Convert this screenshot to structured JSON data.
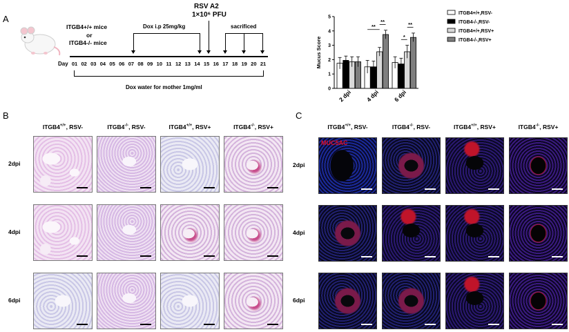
{
  "panels": {
    "a": "A",
    "b": "B",
    "c": "C"
  },
  "timeline": {
    "mouse_text_1": "ITGB4+/+ mice",
    "mouse_text_2": "or",
    "mouse_text_3": "ITGB4-/- mice",
    "dox_ip": "Dox i.p 25mg/kg",
    "rsv_title": "RSV A2",
    "rsv_dose": "1×10⁶ PFU",
    "sacrificed": "sacrificed",
    "day_label": "Day",
    "days": [
      "01",
      "02",
      "03",
      "04",
      "05",
      "06",
      "07",
      "08",
      "09",
      "10",
      "11",
      "12",
      "13",
      "14",
      "15",
      "16",
      "17",
      "18",
      "19",
      "20",
      "21"
    ],
    "dox_water": "Dox water for mother 1mg/ml"
  },
  "chart_data": {
    "type": "bar",
    "ylabel": "Mucus Score",
    "ylim": [
      0,
      5
    ],
    "yticks": [
      "0",
      "1",
      "2",
      "3",
      "4",
      "5"
    ],
    "categories": [
      "2 dpi",
      "4 dpi",
      "6 dpi"
    ],
    "series": [
      {
        "name": "ITGB4+/+,RSV-",
        "color": "#ffffff",
        "values": [
          1.75,
          1.5,
          1.8
        ],
        "errors": [
          0.4,
          0.45,
          0.4
        ]
      },
      {
        "name": "ITGB4-/-,RSV-",
        "color": "#000000",
        "values": [
          1.95,
          1.5,
          1.7
        ],
        "errors": [
          0.3,
          0.4,
          0.4
        ]
      },
      {
        "name": "ITGB4+/+,RSV+",
        "color": "#d9d9d9",
        "values": [
          1.85,
          2.55,
          2.55
        ],
        "errors": [
          0.35,
          0.3,
          0.45
        ]
      },
      {
        "name": "ITGB4-/-,RSV+",
        "color": "#7f7f7f",
        "values": [
          1.85,
          3.75,
          3.55
        ],
        "errors": [
          0.35,
          0.3,
          0.3
        ]
      }
    ],
    "significance": [
      {
        "group": "4 dpi",
        "pair": [
          2,
          3
        ],
        "label": "**"
      },
      {
        "group": "4 dpi",
        "pair": [
          0,
          2
        ],
        "label": "**"
      },
      {
        "group": "6 dpi",
        "pair": [
          1,
          2
        ],
        "label": "*"
      },
      {
        "group": "6 dpi",
        "pair": [
          2,
          3
        ],
        "label": "**"
      }
    ],
    "legend_position": "right"
  },
  "panel_b": {
    "columns": [
      "ITGB4+/+, RSV-",
      "ITGB4-/-, RSV-",
      "ITGB4+/+, RSV+",
      "ITGB4-/-, RSV+"
    ],
    "rows": [
      "2dpi",
      "4dpi",
      "6dpi"
    ]
  },
  "panel_c": {
    "columns": [
      "ITGB4+/+, RSV-",
      "ITGB4-/-, RSV-",
      "ITGB4+/+, RSV+",
      "ITGB4-/-, RSV+"
    ],
    "rows": [
      "2dpi",
      "4dpi",
      "6dpi"
    ],
    "marker": "MUC5AC"
  }
}
